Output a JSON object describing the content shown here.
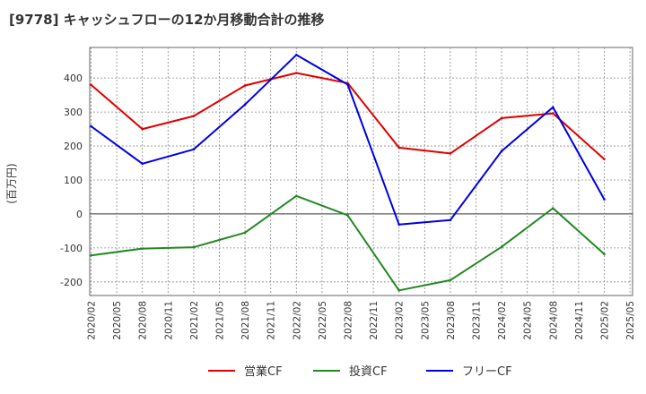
{
  "colors": {
    "operating": "#dd0000",
    "investing": "#228822",
    "free": "#0000dd",
    "grid": "#888888",
    "zero_line": "#333333",
    "plot_bg": "#ffffff",
    "text": "#333333"
  },
  "chart_data": {
    "type": "line",
    "title": "[9778]  キャッシュフローの12か月移動合計の推移",
    "ylabel": "(百万円)",
    "xlabel": "",
    "ylim": [
      -240,
      490
    ],
    "yticks": [
      400,
      300,
      200,
      100,
      0,
      -100,
      -200
    ],
    "xticks": [
      "2020/02",
      "2020/05",
      "2020/08",
      "2020/11",
      "2021/02",
      "2021/05",
      "2021/08",
      "2021/11",
      "2022/02",
      "2022/05",
      "2022/08",
      "2022/11",
      "2023/02",
      "2023/05",
      "2023/08",
      "2023/11",
      "2024/02",
      "2024/05",
      "2024/08",
      "2024/11",
      "2025/02",
      "2025/05"
    ],
    "x": [
      "2020/02",
      "2020/08",
      "2021/02",
      "2021/08",
      "2022/02",
      "2022/08",
      "2023/02",
      "2023/08",
      "2024/02",
      "2024/08",
      "2025/02"
    ],
    "series": [
      {
        "name": "営業CF",
        "color_key": "operating",
        "values": [
          380,
          250,
          288,
          378,
          415,
          385,
          195,
          178,
          282,
          296,
          161
        ]
      },
      {
        "name": "投資CF",
        "color_key": "investing",
        "values": [
          -122,
          -102,
          -98,
          -55,
          53,
          -4,
          -225,
          -195,
          -97,
          17,
          -118
        ]
      },
      {
        "name": "フリーCF",
        "color_key": "free",
        "values": [
          258,
          148,
          190,
          322,
          468,
          381,
          -31,
          -18,
          185,
          314,
          43
        ]
      }
    ],
    "legend": "bottom-center"
  }
}
